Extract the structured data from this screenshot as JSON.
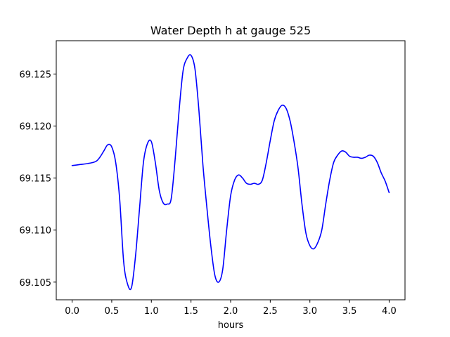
{
  "chart_data": {
    "type": "line",
    "title": "Water Depth h at gauge 525",
    "xlabel": "hours",
    "ylabel": "",
    "xlim": [
      -0.2,
      4.2
    ],
    "ylim": [
      69.1033,
      69.1282
    ],
    "x_ticks": [
      0.0,
      0.5,
      1.0,
      1.5,
      2.0,
      2.5,
      3.0,
      3.5,
      4.0
    ],
    "x_tick_labels": [
      "0.0",
      "0.5",
      "1.0",
      "1.5",
      "2.0",
      "2.5",
      "3.0",
      "3.5",
      "4.0"
    ],
    "y_ticks": [
      69.105,
      69.11,
      69.115,
      69.12,
      69.125
    ],
    "y_tick_labels": [
      "69.105",
      "69.110",
      "69.115",
      "69.120",
      "69.125"
    ],
    "grid": false,
    "legend": "none",
    "series": [
      {
        "color": "#0000ff",
        "x": [
          0.0,
          0.1,
          0.2,
          0.3,
          0.35,
          0.4,
          0.45,
          0.5,
          0.55,
          0.6,
          0.65,
          0.7,
          0.75,
          0.8,
          0.85,
          0.9,
          0.95,
          1.0,
          1.05,
          1.1,
          1.15,
          1.2,
          1.25,
          1.3,
          1.35,
          1.4,
          1.45,
          1.5,
          1.55,
          1.6,
          1.65,
          1.7,
          1.75,
          1.8,
          1.85,
          1.9,
          1.95,
          2.0,
          2.05,
          2.1,
          2.15,
          2.2,
          2.25,
          2.3,
          2.35,
          2.4,
          2.45,
          2.5,
          2.55,
          2.6,
          2.65,
          2.7,
          2.75,
          2.8,
          2.85,
          2.9,
          2.95,
          3.0,
          3.05,
          3.1,
          3.15,
          3.2,
          3.25,
          3.3,
          3.35,
          3.4,
          3.45,
          3.5,
          3.55,
          3.6,
          3.65,
          3.7,
          3.75,
          3.8,
          3.85,
          3.9,
          3.95,
          4.0
        ],
        "y": [
          69.1162,
          69.1163,
          69.1164,
          69.1166,
          69.117,
          69.1176,
          69.1182,
          69.118,
          69.1165,
          69.113,
          69.107,
          69.1048,
          69.1045,
          69.1075,
          69.112,
          69.1165,
          69.1183,
          69.1185,
          69.1165,
          69.1138,
          69.1126,
          69.1125,
          69.113,
          69.1168,
          69.1215,
          69.1253,
          69.1265,
          69.1268,
          69.1255,
          69.1215,
          69.1163,
          69.1122,
          69.1085,
          69.1057,
          69.105,
          69.1062,
          69.11,
          69.1133,
          69.1148,
          69.1153,
          69.115,
          69.1145,
          69.1144,
          69.1145,
          69.1144,
          69.1148,
          69.1165,
          69.1186,
          69.1205,
          69.1215,
          69.122,
          69.1217,
          69.1205,
          69.1185,
          69.116,
          69.1125,
          69.1097,
          69.1085,
          69.1082,
          69.1088,
          69.11,
          69.1125,
          69.1148,
          69.1165,
          69.1172,
          69.1176,
          69.1175,
          69.1171,
          69.117,
          69.117,
          69.1169,
          69.117,
          69.1172,
          69.1171,
          69.1165,
          69.1155,
          69.1147,
          69.1136
        ]
      }
    ]
  }
}
